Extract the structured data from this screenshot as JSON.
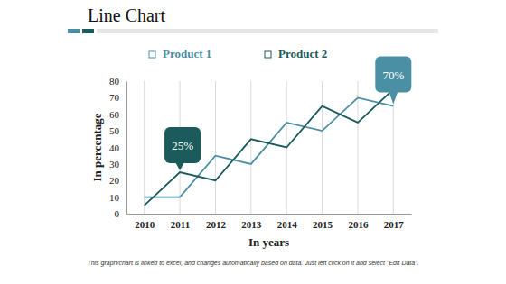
{
  "chart_data": {
    "type": "line",
    "title": "Line Chart",
    "x_label": "In years",
    "y_label": "In percentage",
    "categories": [
      "2010",
      "2011",
      "2012",
      "2013",
      "2014",
      "2015",
      "2016",
      "2017"
    ],
    "series": [
      {
        "name": "Product 1",
        "color": "#4a8fa3",
        "values": [
          10,
          10,
          35,
          30,
          55,
          50,
          70,
          65
        ]
      },
      {
        "name": "Product 2",
        "color": "#1b5b5b",
        "values": [
          5,
          25,
          20,
          45,
          40,
          65,
          55,
          75
        ]
      }
    ],
    "ylim": [
      0,
      80
    ],
    "yticks": [
      0,
      10,
      20,
      30,
      40,
      50,
      60,
      70,
      80
    ],
    "grid": true,
    "legend": "top",
    "annotations": [
      "25%",
      "70%",
      "This graph/chart is linked to excel, and changes automatically based on data. Just left click on it and select \"Edit Data\"."
    ]
  }
}
